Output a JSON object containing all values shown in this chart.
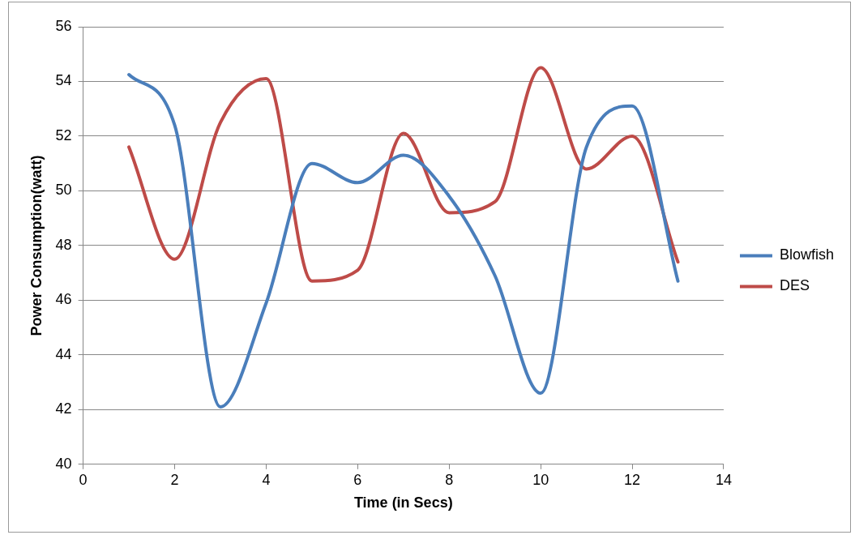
{
  "chart_data": {
    "type": "line",
    "xlabel": "Time (in Secs)",
    "ylabel": "Power Consumption(watt)",
    "x": [
      1,
      2,
      3,
      4,
      5,
      6,
      7,
      8,
      9,
      10,
      11,
      12,
      13
    ],
    "series": [
      {
        "name": "Blowfish",
        "color": "#4a7ebb",
        "values": [
          54.25,
          52.4,
          42.1,
          45.9,
          51.0,
          50.3,
          51.3,
          49.8,
          46.9,
          42.6,
          51.6,
          53.1,
          46.7
        ]
      },
      {
        "name": "DES",
        "color": "#be4b48",
        "values": [
          51.6,
          47.5,
          52.5,
          54.1,
          46.7,
          47.1,
          52.1,
          49.2,
          49.6,
          54.5,
          50.8,
          52.0,
          47.4
        ]
      }
    ],
    "xlim": [
      0,
      14
    ],
    "xticks": [
      0,
      2,
      4,
      6,
      8,
      10,
      12,
      14
    ],
    "ylim": [
      40,
      56
    ],
    "yticks": [
      40,
      42,
      44,
      46,
      48,
      50,
      52,
      54,
      56
    ],
    "grid": "y",
    "legend": "right",
    "marker": "none",
    "line_style": "solid"
  }
}
